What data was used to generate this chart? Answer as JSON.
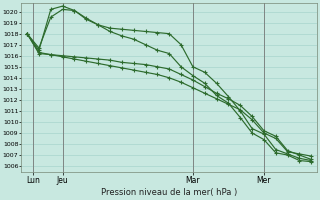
{
  "background_color": "#c8e8e0",
  "grid_color": "#a8d4cc",
  "line_color": "#2d6b2d",
  "ylabel": "Pression niveau de la mer( hPa )",
  "ylim_min": 1005.5,
  "ylim_max": 1020.8,
  "ytick_min": 1006,
  "ytick_max": 1020,
  "num_points": 25,
  "xtick_positions": [
    0.5,
    3,
    14,
    20
  ],
  "xtick_labels": [
    "Lun",
    "Jeu",
    "Mar",
    "Mer"
  ],
  "vline_positions": [
    0.5,
    3,
    14,
    20
  ],
  "s1": [
    1018.0,
    1016.7,
    1019.5,
    1020.2,
    1020.1,
    1019.4,
    1018.8,
    1018.5,
    1018.4,
    1018.3,
    1018.2,
    1018.1,
    1018.0,
    1017.0,
    1015.0,
    1014.5,
    1013.5,
    1012.3,
    1011.0,
    1009.4,
    1008.9,
    1007.5,
    1007.1,
    1006.7,
    1006.5
  ],
  "s2": [
    1018.0,
    1016.5,
    1020.2,
    1020.5,
    1020.1,
    1019.3,
    1018.8,
    1018.2,
    1017.8,
    1017.5,
    1017.0,
    1016.5,
    1016.2,
    1015.0,
    1014.2,
    1013.5,
    1012.4,
    1011.7,
    1010.4,
    1009.0,
    1008.4,
    1007.2,
    1007.0,
    1006.5,
    1006.4
  ],
  "s3": [
    1018.0,
    1016.2,
    1016.1,
    1016.0,
    1015.9,
    1015.8,
    1015.7,
    1015.6,
    1015.4,
    1015.3,
    1015.2,
    1015.0,
    1014.8,
    1014.3,
    1013.8,
    1013.2,
    1012.6,
    1012.1,
    1011.5,
    1010.5,
    1009.2,
    1008.7,
    1007.4,
    1007.0,
    1006.6
  ],
  "s4": [
    1018.0,
    1016.3,
    1016.1,
    1015.9,
    1015.7,
    1015.5,
    1015.3,
    1015.1,
    1014.9,
    1014.7,
    1014.5,
    1014.3,
    1014.0,
    1013.6,
    1013.1,
    1012.6,
    1012.1,
    1011.6,
    1011.1,
    1010.2,
    1009.0,
    1008.5,
    1007.3,
    1007.1,
    1006.9
  ]
}
